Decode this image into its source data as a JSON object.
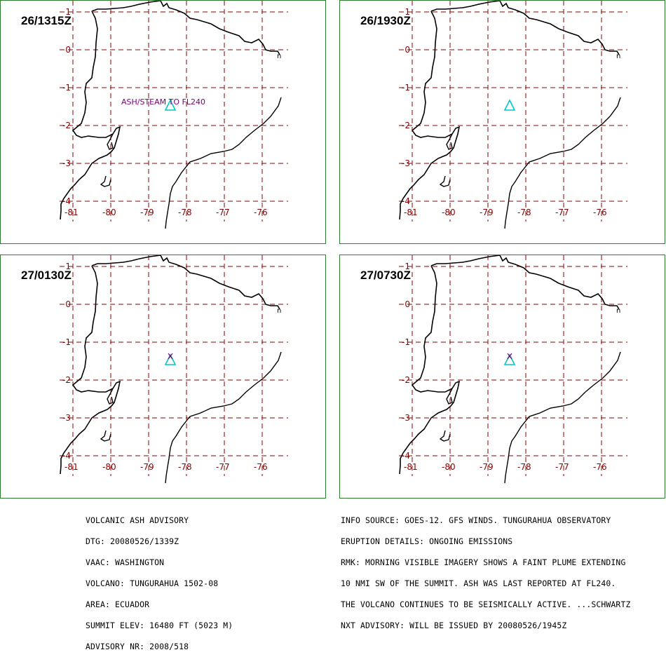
{
  "panels": [
    {
      "title": "26/1315Z",
      "label": "ASH/STEAM TO FL240"
    },
    {
      "title": "26/1930Z",
      "label": ""
    },
    {
      "title": "27/0130Z",
      "label": ""
    },
    {
      "title": "27/0730Z",
      "label": ""
    }
  ],
  "axes": {
    "lon_ticks": [
      "-81",
      "-80",
      "-79",
      "-78",
      "-77",
      "-76"
    ],
    "lat_ticks": [
      "1",
      "0",
      "-1",
      "-2",
      "-3",
      "-4"
    ]
  },
  "advisory": {
    "left_lines": [
      "VOLCANIC ASH ADVISORY",
      "DTG: 20080526/1339Z",
      "VAAC: WASHINGTON",
      "VOLCANO: TUNGURAHUA 1502-08",
      "AREA: ECUADOR",
      "SUMMIT ELEV: 16480 FT (5023 M)",
      "ADVISORY NR: 2008/518"
    ],
    "right_lines": [
      "INFO SOURCE: GOES-12. GFS WINDS. TUNGURAHUA OBSERVATORY",
      "ERUPTION DETAILS: ONGOING EMISSIONS",
      "RMK: MORNING VISIBLE IMAGERY SHOWS A FAINT PLUME EXTENDING",
      "10 NMI SW OF THE SUMMIT. ASH WAS LAST REPORTED AT FL240.",
      "THE VOLCANO CONTINUES TO BE SEISMICALLY ACTIVE. ...SCHWARTZ",
      "NXT ADVISORY: WILL BE ISSUED BY 20080526/1945Z"
    ]
  },
  "colors": {
    "grid": "#8b0000",
    "coast": "#000000",
    "volcano": "#00c8c8",
    "label": "#7a007a",
    "border": "#2e7d2e"
  }
}
